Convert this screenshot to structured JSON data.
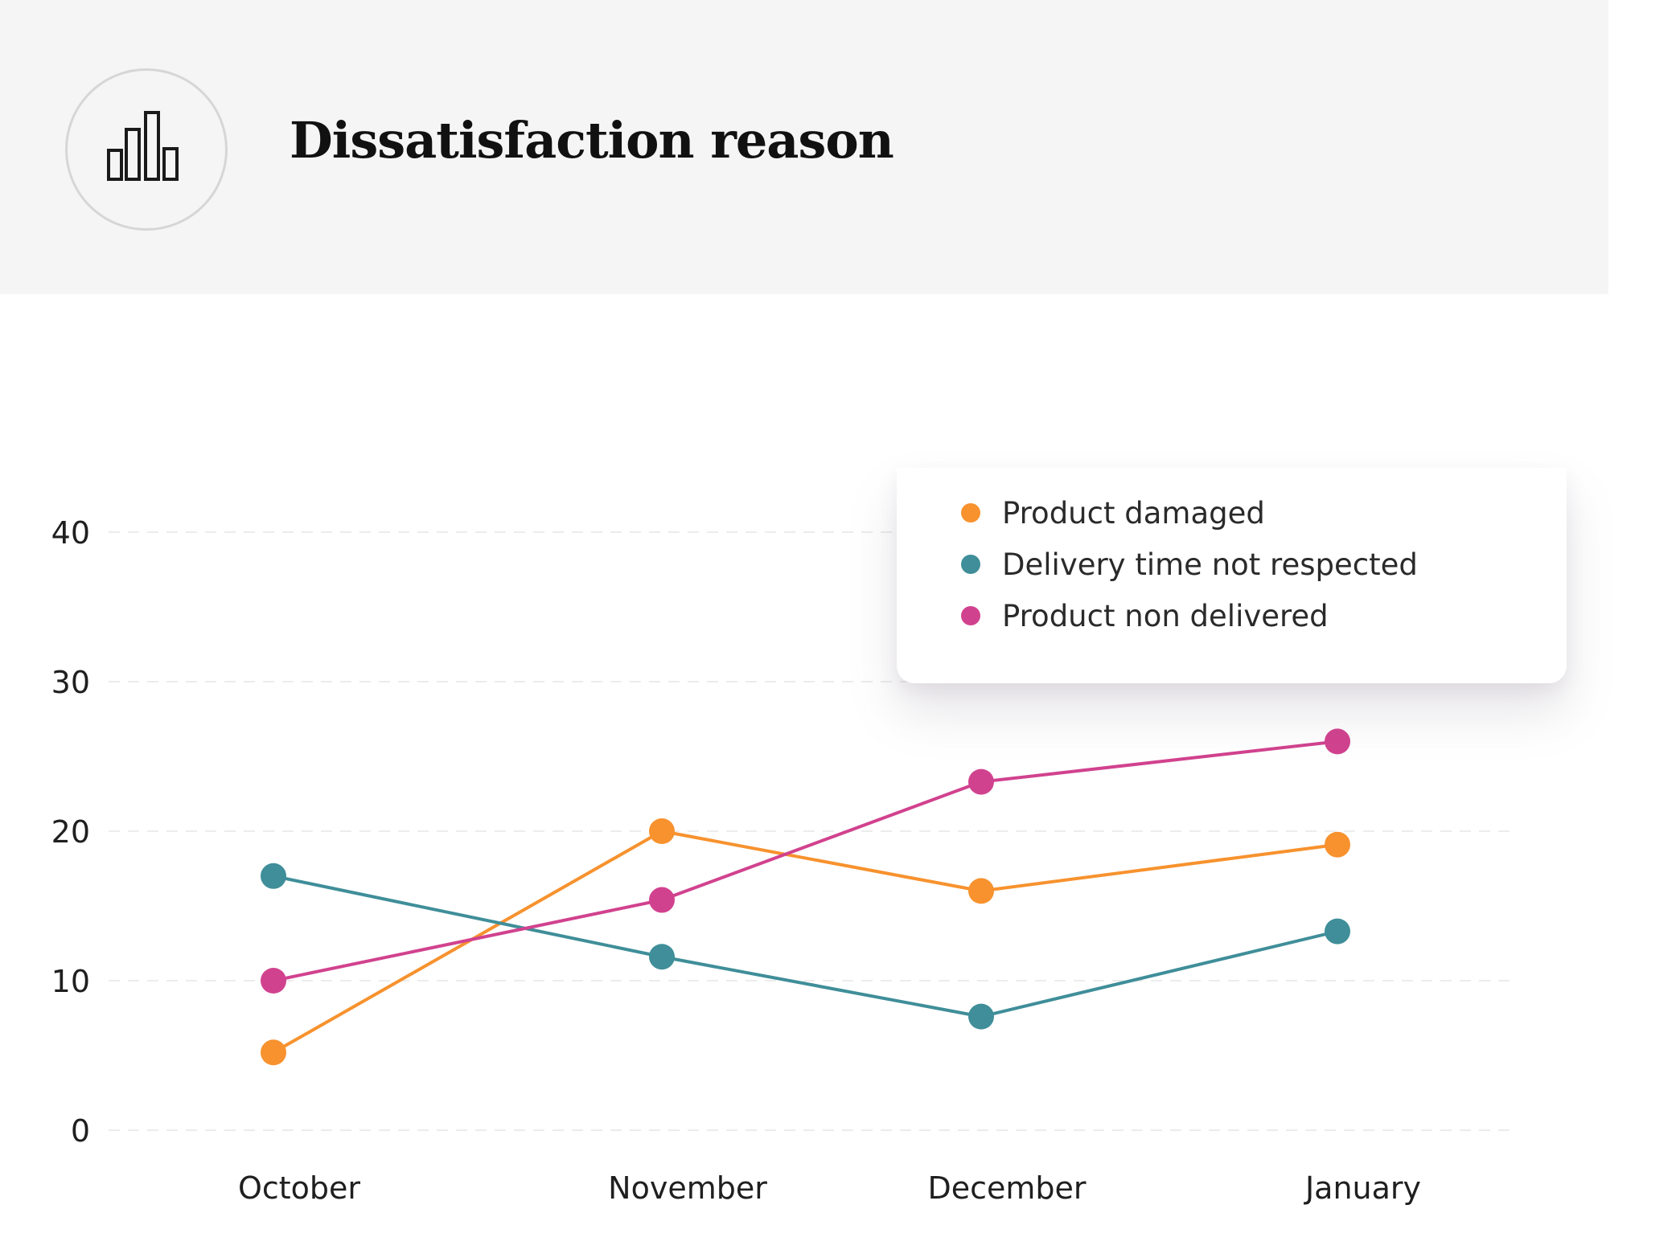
{
  "header": {
    "title": "Dissatisfaction reason",
    "icon": "bar-chart-icon"
  },
  "colors": {
    "product_damaged": "#f7922e",
    "delivery_time": "#3f8e99",
    "product_non_delivered": "#d1428e",
    "grid": "#ececec"
  },
  "chart_data": {
    "type": "line",
    "categories": [
      "October",
      "November",
      "December",
      "January"
    ],
    "yticks": [
      0,
      10,
      20,
      30,
      40
    ],
    "ylim": [
      0,
      40
    ],
    "grid": true,
    "legend_position": "top-right",
    "series": [
      {
        "name": "Product damaged",
        "color": "#f7922e",
        "values": [
          5.2,
          20,
          16,
          19.1
        ]
      },
      {
        "name": "Delivery time not respected",
        "color": "#3f8e99",
        "values": [
          17,
          11.6,
          7.6,
          13.3
        ]
      },
      {
        "name": "Product non delivered",
        "color": "#d1428e",
        "values": [
          10,
          15.4,
          23.3,
          26
        ]
      }
    ]
  }
}
